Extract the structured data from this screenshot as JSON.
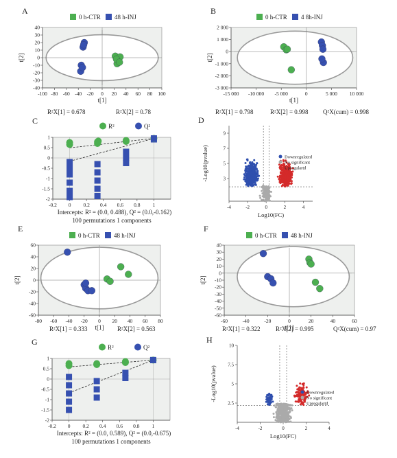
{
  "panels": {
    "A": {
      "letter": "A",
      "legend": [
        "0 h-CTR",
        "48 h-INJ"
      ],
      "ylabel": "t[2]",
      "xlabel": "t[1]",
      "stats": [
        "R²X[1] = 0.678",
        "R²X[2] = 0.78"
      ]
    },
    "B": {
      "letter": "B",
      "legend": [
        "0 h-CTR",
        "4 8h-INJ"
      ],
      "ylabel": "t[2]",
      "xlabel": "t[1]",
      "stats": [
        "R²X[1] = 0.798",
        "R²X[2] = 0.998",
        "Q²X(cum) = 0.998"
      ]
    },
    "C": {
      "letter": "C",
      "legend": [
        "R²",
        "Q²"
      ],
      "caption1": "Intercepts: R² = (0.0, 0.488), Q² = (0.0,-0.162)",
      "caption2": "100 permutations 1 components"
    },
    "D": {
      "letter": "D",
      "ylabel": "-Log10(pvalue)",
      "xlabel": "Log10(FC)",
      "legend": [
        "Downregulated",
        "No significant",
        "Upregulartd"
      ]
    },
    "E": {
      "letter": "E",
      "legend": [
        "0 h-CTR",
        "48 h-INJ"
      ],
      "ylabel": "t[2]",
      "xlabel": "t[1]",
      "stats": [
        "R²X[1] = 0.333",
        "R²X[2] = 0.563"
      ]
    },
    "F": {
      "letter": "F",
      "legend": [
        "0 h-CTR",
        "48 h-INJ"
      ],
      "ylabel": "t[2]",
      "xlabel": "t[1]",
      "stats": [
        "R²X[1] = 0.322",
        "R²X[2] = 0.995",
        "Q²X(cum) = 0.97"
      ]
    },
    "G": {
      "letter": "G",
      "legend": [
        "R²",
        "Q²"
      ],
      "caption1": "Intercepts: R² = (0.0, 0.589), Q² = (0.0,-0.675)",
      "caption2": "100 permutations 1 components"
    },
    "H": {
      "letter": "H",
      "ylabel": "-Log10(pvalue)",
      "xlabel": "Log10(FC)",
      "legend": [
        "Downregulated",
        "No significant",
        "Upregulartd"
      ]
    }
  },
  "colors": {
    "ctr": "#4caf50",
    "inj": "#3650b0",
    "sig_up": "#d42a2a",
    "sig_down": "#2f4fae",
    "ns": "#aaaaaa",
    "panel_bg": "#eef0ee"
  },
  "chart_data": [
    {
      "panel": "A",
      "type": "scatter",
      "xlabel": "t[1]",
      "ylabel": "t[2]",
      "xlim": [
        -100,
        100
      ],
      "ylim": [
        -40,
        40
      ],
      "xticks": [
        -100,
        -80,
        -60,
        -40,
        -20,
        0,
        20,
        40,
        60,
        80,
        100
      ],
      "yticks": [
        -40,
        -30,
        -20,
        -10,
        0,
        10,
        20,
        30,
        40
      ],
      "series": [
        {
          "name": "0 h-CTR",
          "points": [
            [
              22,
              2
            ],
            [
              28,
              -5
            ],
            [
              25,
              -8
            ],
            [
              30,
              1
            ],
            [
              24,
              -2
            ],
            [
              29,
              -6
            ]
          ]
        },
        {
          "name": "48 h-INJ",
          "points": [
            [
              -30,
              20
            ],
            [
              -32,
              14
            ],
            [
              -35,
              -10
            ],
            [
              -36,
              -18
            ],
            [
              -33,
              -13
            ],
            [
              -31,
              17
            ]
          ]
        }
      ]
    },
    {
      "panel": "B",
      "type": "scatter",
      "xlabel": "t[1]",
      "ylabel": "t[2]",
      "xlim": [
        -15000,
        10000
      ],
      "ylim": [
        -3000,
        2000
      ],
      "xticks": [
        -15000,
        -10000,
        -5000,
        0,
        5000,
        10000
      ],
      "xticklabels": [
        "-15 000",
        "-10 000",
        "-5 000",
        "0",
        "5 000",
        "10 000"
      ],
      "yticks": [
        -3000,
        -2000,
        -1000,
        0,
        1000,
        2000
      ],
      "yticklabels": [
        "-3 000",
        "-2 000",
        "-1 000",
        "0",
        "1 000",
        "2 000"
      ],
      "series": [
        {
          "name": "0 h-CTR",
          "points": [
            [
              -4500,
              400
            ],
            [
              -4000,
              150
            ],
            [
              -3800,
              200
            ],
            [
              -3000,
              -1500
            ]
          ]
        },
        {
          "name": "4 8h-INJ",
          "points": [
            [
              3000,
              800
            ],
            [
              3200,
              500
            ],
            [
              3400,
              -900
            ],
            [
              3100,
              -600
            ],
            [
              3300,
              200
            ]
          ]
        }
      ]
    },
    {
      "panel": "C",
      "type": "scatter",
      "xlim": [
        -0.2,
        1.2
      ],
      "ylim": [
        -2,
        1
      ],
      "xticks": [
        -0.2,
        0,
        0.2,
        0.4,
        0.6,
        0.8,
        1
      ],
      "yticks": [
        -2,
        -1.5,
        -1,
        -0.5,
        0,
        0.5,
        1
      ],
      "intercepts": {
        "R2": [
          0.0,
          0.488
        ],
        "Q2": [
          0.0,
          -0.162
        ]
      },
      "series": [
        {
          "name": "R²",
          "points": [
            [
              0,
              0.75
            ],
            [
              0,
              0.65
            ],
            [
              0.33,
              0.78
            ],
            [
              0.33,
              0.7
            ],
            [
              0.34,
              0.82
            ],
            [
              0.67,
              0.85
            ],
            [
              0.67,
              0.8
            ],
            [
              1,
              0.95
            ]
          ]
        },
        {
          "name": "Q²",
          "points": [
            [
              0,
              -0.2
            ],
            [
              0,
              -0.5
            ],
            [
              0,
              -0.8
            ],
            [
              0,
              -1.2
            ],
            [
              0,
              -1.6
            ],
            [
              0,
              -1.9
            ],
            [
              0.33,
              -0.3
            ],
            [
              0.33,
              -0.7
            ],
            [
              0.33,
              -1.1
            ],
            [
              0.33,
              -1.5
            ],
            [
              0.33,
              -1.85
            ],
            [
              0.67,
              0.3
            ],
            [
              0.67,
              0
            ],
            [
              0.67,
              -0.25
            ],
            [
              1,
              0.9
            ]
          ]
        }
      ]
    },
    {
      "panel": "D",
      "type": "scatter",
      "xlabel": "Log10(FC)",
      "ylabel": "-Log10(pvalue)",
      "xlim": [
        -4,
        5
      ],
      "ylim": [
        0,
        10
      ],
      "xticks": [
        -4,
        -2,
        0,
        2,
        4
      ],
      "yticks": [
        3,
        5,
        7,
        9
      ],
      "series": [
        {
          "name": "Downregulated",
          "count": 450
        },
        {
          "name": "No significant",
          "count": 150
        },
        {
          "name": "Upregulartd",
          "count": 380
        }
      ]
    },
    {
      "panel": "E",
      "type": "scatter",
      "xlabel": "t[1]",
      "ylabel": "t[2]",
      "xlim": [
        -80,
        80
      ],
      "ylim": [
        -60,
        60
      ],
      "xticks": [
        -80,
        -60,
        -40,
        -20,
        0,
        20,
        40,
        60,
        80
      ],
      "yticks": [
        -60,
        -40,
        -20,
        0,
        20,
        40,
        60
      ],
      "series": [
        {
          "name": "0 h-CTR",
          "points": [
            [
              10,
              2
            ],
            [
              14,
              -2
            ],
            [
              28,
              23
            ],
            [
              38,
              10
            ]
          ]
        },
        {
          "name": "48 h-INJ",
          "points": [
            [
              -42,
              48
            ],
            [
              -20,
              -8
            ],
            [
              -18,
              -14
            ],
            [
              -15,
              -18
            ],
            [
              -10,
              -18
            ],
            [
              -18,
              -5
            ]
          ]
        }
      ]
    },
    {
      "panel": "F",
      "type": "scatter",
      "xlabel": "t[1]",
      "ylabel": "t[2]",
      "xlim": [
        -60,
        60
      ],
      "ylim": [
        -60,
        40
      ],
      "xticks": [
        -60,
        -40,
        -20,
        0,
        20,
        40,
        60
      ],
      "yticks": [
        -60,
        -50,
        -40,
        -30,
        -20,
        -10,
        0,
        10,
        20,
        30,
        40
      ],
      "series": [
        {
          "name": "0 h-CTR",
          "points": [
            [
              18,
              20
            ],
            [
              19,
              15
            ],
            [
              20,
              13
            ],
            [
              24,
              -13
            ],
            [
              28,
              -22
            ]
          ]
        },
        {
          "name": "48 h-INJ",
          "points": [
            [
              -24,
              28
            ],
            [
              -20,
              -5
            ],
            [
              -17,
              -8
            ],
            [
              -15,
              -14
            ]
          ]
        }
      ]
    },
    {
      "panel": "G",
      "type": "scatter",
      "xlim": [
        -0.2,
        1.2
      ],
      "ylim": [
        -2,
        1
      ],
      "xticks": [
        -0.2,
        0,
        0.2,
        0.4,
        0.6,
        0.8,
        1
      ],
      "yticks": [
        -2,
        -1.5,
        -1,
        -0.5,
        0,
        0.5,
        1
      ],
      "intercepts": {
        "R2": [
          0.0,
          0.589
        ],
        "Q2": [
          0.0,
          -0.675
        ]
      },
      "series": [
        {
          "name": "R²",
          "points": [
            [
              0,
              0.75
            ],
            [
              0,
              0.65
            ],
            [
              0.33,
              0.7
            ],
            [
              0.33,
              0.75
            ],
            [
              0.67,
              0.8
            ],
            [
              0.67,
              0.85
            ],
            [
              1,
              0.92
            ]
          ]
        },
        {
          "name": "Q²",
          "points": [
            [
              0,
              0.1
            ],
            [
              0,
              -0.3
            ],
            [
              0,
              -0.7
            ],
            [
              0,
              -1.1
            ],
            [
              0,
              -1.5
            ],
            [
              0.33,
              -0.1
            ],
            [
              0.33,
              -0.5
            ],
            [
              0.33,
              -0.9
            ],
            [
              0.67,
              0.3
            ],
            [
              0.67,
              0.05
            ],
            [
              1,
              0.92
            ]
          ]
        }
      ]
    },
    {
      "panel": "H",
      "type": "scatter",
      "xlabel": "Log10(FC)",
      "ylabel": "-Log10(pvalue)",
      "xlim": [
        -4,
        4
      ],
      "ylim": [
        0,
        10
      ],
      "xticks": [
        -4,
        -2,
        0,
        2,
        4
      ],
      "yticks": [
        2.5,
        5,
        7.5,
        10
      ],
      "series": [
        {
          "name": "Downregulated",
          "count": 60
        },
        {
          "name": "No significant",
          "count": 400
        },
        {
          "name": "Upregulartd",
          "count": 140
        }
      ]
    }
  ]
}
